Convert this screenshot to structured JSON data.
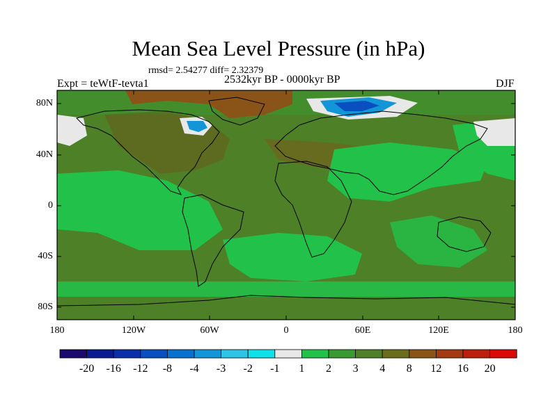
{
  "title": "Mean Sea Level Pressure (in hPa)",
  "stats_text": "rmsd= 2.54277 diff= 2.32379",
  "experiment_label": "Expt = teWtF-tevta1",
  "period_label": "2532kyr BP - 0000kyr BP",
  "season_label": "DJF",
  "lat_ticks": [
    "80N",
    "40N",
    "0",
    "40S",
    "80S"
  ],
  "lon_ticks": [
    "180",
    "120W",
    "60W",
    "0",
    "60E",
    "120E",
    "180"
  ],
  "colorbar": {
    "labels": [
      "-20",
      "-16",
      "-12",
      "-8",
      "-4",
      "-3",
      "-2",
      "-1",
      "1",
      "2",
      "3",
      "4",
      "8",
      "12",
      "16",
      "20"
    ],
    "colors": [
      "#1a0a6e",
      "#0a1a90",
      "#0b2fa8",
      "#0a4fbf",
      "#0a70d0",
      "#1296d8",
      "#2ec4e6",
      "#10e0e8",
      "#e8e8e8",
      "#22c24a",
      "#3a9a32",
      "#4e8028",
      "#6a6e1c",
      "#8a5418",
      "#a43a12",
      "#be1e0c",
      "#dc0a06"
    ]
  },
  "colors": {
    "ocean_green": "#22c24a",
    "mid_green": "#3a9a32",
    "olive": "#4e8028",
    "brown": "#8a5418",
    "light_gray": "#e8e8e8",
    "blue": "#0a6fcf"
  }
}
